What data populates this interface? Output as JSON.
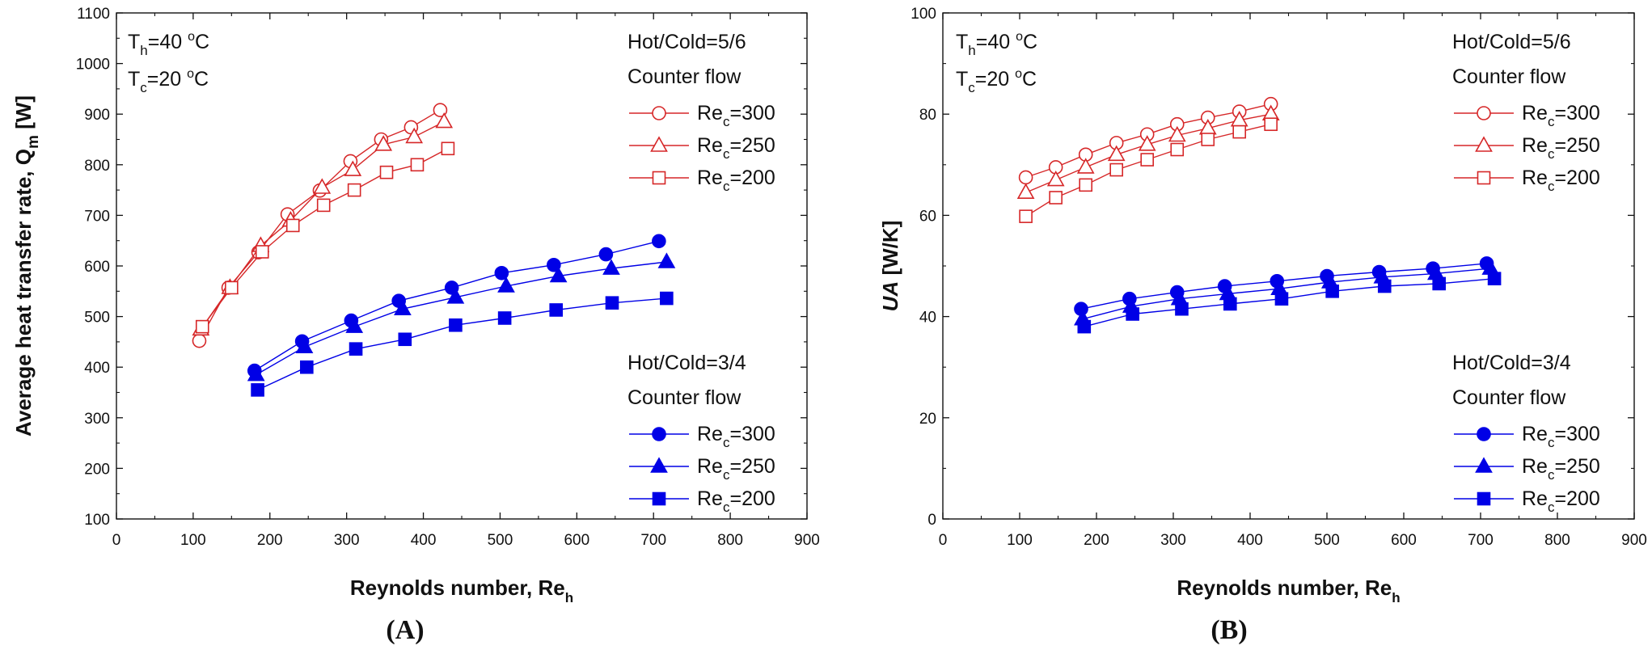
{
  "chart_data": [
    {
      "type": "scatter",
      "panel_label": "(A)",
      "ylabel_main": "Average heat transfer rate, Q",
      "ylabel_sub": "m",
      "ylabel_unit": " [W]",
      "ylabel_italic": "",
      "xlabel_main": "Reynolds number, Re",
      "xlabel_sub": "h",
      "xlim": [
        0,
        900
      ],
      "ylim": [
        100,
        1100
      ],
      "xticks": [
        0,
        100,
        200,
        300,
        400,
        500,
        600,
        700,
        800,
        900
      ],
      "yticks": [
        100,
        200,
        300,
        400,
        500,
        600,
        700,
        800,
        900,
        1000,
        1100
      ],
      "xtick_labels": [
        "0",
        "100",
        "200",
        "300",
        "400",
        "500",
        "600",
        "700",
        "800",
        "900"
      ],
      "ytick_labels": [
        "100",
        "200",
        "300",
        "400",
        "500",
        "600",
        "700",
        "800",
        "900",
        "1000",
        "1100"
      ],
      "conditions": [
        {
          "symbol": "T",
          "sub": "h",
          "value": "=40 ",
          "sup": "o",
          "unit": "C"
        },
        {
          "symbol": "T",
          "sub": "c",
          "value": "=20 ",
          "sup": "o",
          "unit": "C"
        }
      ],
      "legends": [
        {
          "group": "Hot/Cold=5/6",
          "flow": "Counter flow",
          "entries": [
            {
              "name": "Re",
              "sub": "c",
              "value": "=300",
              "marker": "circle",
              "color": "#d62728",
              "filled": false
            },
            {
              "name": "Re",
              "sub": "c",
              "value": "=250",
              "marker": "triangle",
              "color": "#d62728",
              "filled": false
            },
            {
              "name": "Re",
              "sub": "c",
              "value": "=200",
              "marker": "square",
              "color": "#d62728",
              "filled": false
            }
          ]
        },
        {
          "group": "Hot/Cold=3/4",
          "flow": "Counter flow",
          "entries": [
            {
              "name": "Re",
              "sub": "c",
              "value": "=300",
              "marker": "circle",
              "color": "#0000e6",
              "filled": true
            },
            {
              "name": "Re",
              "sub": "c",
              "value": "=250",
              "marker": "triangle",
              "color": "#0000e6",
              "filled": true
            },
            {
              "name": "Re",
              "sub": "c",
              "value": "=200",
              "marker": "square",
              "color": "#0000e6",
              "filled": true
            }
          ]
        }
      ],
      "series": [
        {
          "name": "Hot/Cold=5/6 Re_c=300",
          "marker": "circle",
          "color": "#d62728",
          "filled": false,
          "x": [
            108,
            146,
            185,
            223,
            265,
            305,
            345,
            384,
            422
          ],
          "y": [
            452,
            557,
            627,
            702,
            749,
            807,
            850,
            874,
            908
          ]
        },
        {
          "name": "Hot/Cold=5/6 Re_c=250",
          "marker": "triangle",
          "color": "#d62728",
          "filled": false,
          "x": [
            110,
            148,
            188,
            227,
            268,
            308,
            348,
            388,
            427
          ],
          "y": [
            475,
            557,
            640,
            690,
            755,
            790,
            840,
            855,
            885
          ]
        },
        {
          "name": "Hot/Cold=5/6 Re_c=200",
          "marker": "square",
          "color": "#d62728",
          "filled": false,
          "x": [
            112,
            150,
            190,
            230,
            270,
            310,
            352,
            392,
            432
          ],
          "y": [
            480,
            557,
            628,
            680,
            720,
            750,
            785,
            800,
            832
          ]
        },
        {
          "name": "Hot/Cold=3/4 Re_c=300",
          "marker": "circle",
          "color": "#0000e6",
          "filled": true,
          "x": [
            180,
            242,
            306,
            368,
            437,
            502,
            570,
            638,
            707
          ],
          "y": [
            393,
            451,
            492,
            531,
            557,
            586,
            602,
            623,
            649
          ]
        },
        {
          "name": "Hot/Cold=3/4 Re_c=250",
          "marker": "triangle",
          "color": "#0000e6",
          "filled": true,
          "x": [
            182,
            245,
            310,
            373,
            442,
            508,
            576,
            645,
            717
          ],
          "y": [
            385,
            440,
            480,
            515,
            538,
            560,
            580,
            595,
            608
          ]
        },
        {
          "name": "Hot/Cold=3/4 Re_c=200",
          "marker": "square",
          "color": "#0000e6",
          "filled": true,
          "x": [
            184,
            248,
            312,
            376,
            442,
            506,
            573,
            646,
            717
          ],
          "y": [
            355,
            400,
            436,
            455,
            483,
            497,
            513,
            527,
            536
          ]
        }
      ]
    },
    {
      "type": "scatter",
      "panel_label": "(B)",
      "ylabel_main": "",
      "ylabel_sub": "",
      "ylabel_unit": " [W/K]",
      "ylabel_italic": "UA",
      "xlabel_main": "Reynolds number, Re",
      "xlabel_sub": "h",
      "xlim": [
        0,
        900
      ],
      "ylim": [
        0,
        100
      ],
      "xticks": [
        0,
        100,
        200,
        300,
        400,
        500,
        600,
        700,
        800,
        900
      ],
      "yticks": [
        0,
        20,
        40,
        60,
        80,
        100
      ],
      "xtick_labels": [
        "0",
        "100",
        "200",
        "300",
        "400",
        "500",
        "600",
        "700",
        "800",
        "900"
      ],
      "ytick_labels": [
        "0",
        "20",
        "40",
        "60",
        "80",
        "100"
      ],
      "conditions": [
        {
          "symbol": "T",
          "sub": "h",
          "value": "=40 ",
          "sup": "o",
          "unit": "C"
        },
        {
          "symbol": "T",
          "sub": "c",
          "value": "=20 ",
          "sup": "o",
          "unit": "C"
        }
      ],
      "legends": [
        {
          "group": "Hot/Cold=5/6",
          "flow": "Counter flow",
          "entries": [
            {
              "name": "Re",
              "sub": "c",
              "value": "=300",
              "marker": "circle",
              "color": "#d62728",
              "filled": false
            },
            {
              "name": "Re",
              "sub": "c",
              "value": "=250",
              "marker": "triangle",
              "color": "#d62728",
              "filled": false
            },
            {
              "name": "Re",
              "sub": "c",
              "value": "=200",
              "marker": "square",
              "color": "#d62728",
              "filled": false
            }
          ]
        },
        {
          "group": "Hot/Cold=3/4",
          "flow": "Counter flow",
          "entries": [
            {
              "name": "Re",
              "sub": "c",
              "value": "=300",
              "marker": "circle",
              "color": "#0000e6",
              "filled": true
            },
            {
              "name": "Re",
              "sub": "c",
              "value": "=250",
              "marker": "triangle",
              "color": "#0000e6",
              "filled": true
            },
            {
              "name": "Re",
              "sub": "c",
              "value": "=200",
              "marker": "square",
              "color": "#0000e6",
              "filled": true
            }
          ]
        }
      ],
      "series": [
        {
          "name": "Hot/Cold=5/6 Re_c=300",
          "marker": "circle",
          "color": "#d62728",
          "filled": false,
          "x": [
            108,
            147,
            186,
            226,
            266,
            305,
            345,
            386,
            427
          ],
          "y": [
            67.5,
            69.5,
            72,
            74.3,
            76,
            78,
            79.3,
            80.5,
            82
          ]
        },
        {
          "name": "Hot/Cold=5/6 Re_c=250",
          "marker": "triangle",
          "color": "#d62728",
          "filled": false,
          "x": [
            108,
            147,
            186,
            226,
            266,
            305,
            345,
            386,
            427
          ],
          "y": [
            64.5,
            67,
            69.5,
            72,
            74,
            75.8,
            77.2,
            78.8,
            80
          ]
        },
        {
          "name": "Hot/Cold=5/6 Re_c=200",
          "marker": "square",
          "color": "#d62728",
          "filled": false,
          "x": [
            108,
            147,
            186,
            226,
            266,
            305,
            345,
            386,
            427
          ],
          "y": [
            59.8,
            63.5,
            66,
            69,
            71,
            73,
            75,
            76.5,
            78
          ]
        },
        {
          "name": "Hot/Cold=3/4 Re_c=300",
          "marker": "circle",
          "color": "#0000e6",
          "filled": true,
          "x": [
            180,
            243,
            305,
            367,
            435,
            500,
            568,
            638,
            708
          ],
          "y": [
            41.5,
            43.5,
            44.8,
            46,
            47,
            48,
            48.8,
            49.5,
            50.5
          ]
        },
        {
          "name": "Hot/Cold=3/4 Re_c=250",
          "marker": "triangle",
          "color": "#0000e6",
          "filled": true,
          "x": [
            182,
            245,
            308,
            371,
            438,
            504,
            572,
            642,
            713
          ],
          "y": [
            39.5,
            42,
            43.5,
            44.5,
            45.5,
            46.8,
            47.8,
            48.5,
            49.5
          ]
        },
        {
          "name": "Hot/Cold=3/4 Re_c=200",
          "marker": "square",
          "color": "#0000e6",
          "filled": true,
          "x": [
            184,
            247,
            311,
            374,
            441,
            507,
            575,
            646,
            718
          ],
          "y": [
            38,
            40.5,
            41.5,
            42.5,
            43.5,
            45,
            46,
            46.5,
            47.5
          ]
        }
      ]
    }
  ]
}
